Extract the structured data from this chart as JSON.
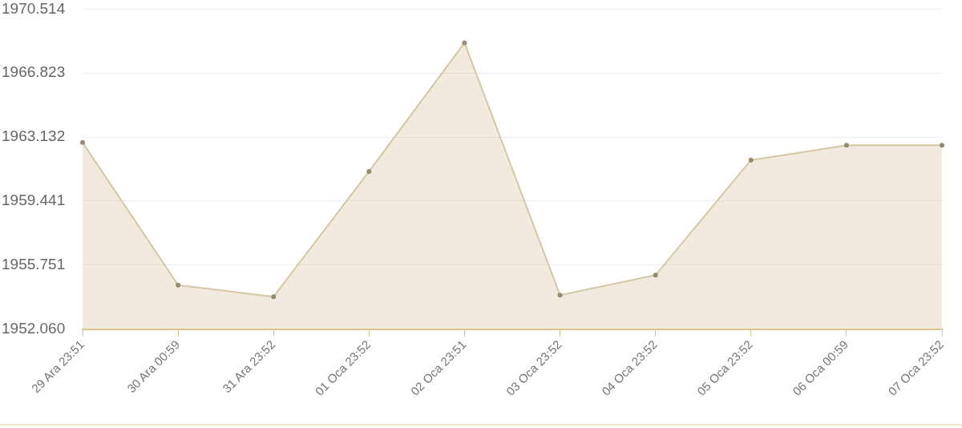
{
  "chart_data": {
    "type": "area",
    "categories": [
      "29 Ara 23:51",
      "30 Ara 00:59",
      "31 Ara 23:52",
      "01 Oca 23:52",
      "02 Oca 23:51",
      "03 Oca 23:52",
      "04 Oca 23:52",
      "05 Oca 23:52",
      "06 Oca 00:59",
      "07 Oca 23:52"
    ],
    "series": [
      {
        "color": "#d6c7a4",
        "values": [
          1962.82,
          1954.6,
          1953.93,
          1961.15,
          1968.57,
          1954.02,
          1955.17,
          1961.81,
          1962.66,
          1962.66
        ]
      }
    ],
    "ylim": [
      1952.06,
      1970.514
    ],
    "yticks": [
      {
        "value": 1952.06,
        "label": "1952.060"
      },
      1955.751,
      1959.441,
      1963.132,
      1966.823,
      1970.514
    ],
    "grid": "y",
    "legend": false,
    "marker": "circle"
  }
}
